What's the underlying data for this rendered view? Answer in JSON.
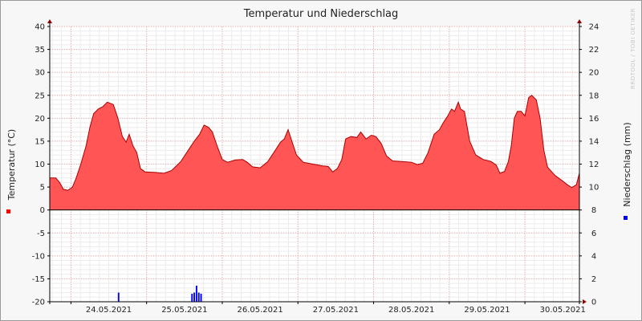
{
  "chart_data": {
    "type": "area",
    "title": "Temperatur und Niederschlag",
    "watermark": "RRDTOOL / TOBI OETIKER",
    "ylabel_left": "Temperatur (°C)",
    "ylabel_right": "Niederschlag (mm)",
    "ylim_left": [
      -20,
      40
    ],
    "ylim_right": [
      0,
      24
    ],
    "yticks_left": [
      40,
      35,
      30,
      25,
      20,
      15,
      10,
      5,
      0,
      -5,
      -10,
      -15,
      -20
    ],
    "yticks_right": [
      24,
      22,
      20,
      18,
      16,
      14,
      12,
      10,
      8,
      6,
      4,
      2,
      0
    ],
    "xlim_days": [
      -0.28,
      6.72
    ],
    "xtick_labels": [
      "24.05.2021",
      "25.05.2021",
      "26.05.2021",
      "27.05.2021",
      "28.05.2021",
      "29.05.2021",
      "30.05.2021"
    ],
    "grid": true,
    "legend_markers": [
      {
        "series": "Temperatur",
        "color": "#ff0000"
      },
      {
        "series": "Niederschlag",
        "color": "#0000ff"
      }
    ],
    "series": [
      {
        "name": "Temperatur",
        "unit": "°C",
        "color": "#ff5555",
        "line_color": "#aa0000",
        "points": [
          [
            -0.28,
            7
          ],
          [
            -0.2,
            7
          ],
          [
            -0.15,
            6
          ],
          [
            -0.1,
            4.5
          ],
          [
            -0.04,
            4.3
          ],
          [
            0.02,
            5
          ],
          [
            0.07,
            7
          ],
          [
            0.13,
            10
          ],
          [
            0.2,
            14
          ],
          [
            0.25,
            18
          ],
          [
            0.3,
            21
          ],
          [
            0.36,
            22
          ],
          [
            0.42,
            22.5
          ],
          [
            0.48,
            23.5
          ],
          [
            0.56,
            23
          ],
          [
            0.62,
            20
          ],
          [
            0.68,
            16
          ],
          [
            0.73,
            14.8
          ],
          [
            0.77,
            16.5
          ],
          [
            0.82,
            14
          ],
          [
            0.87,
            12.5
          ],
          [
            0.92,
            9
          ],
          [
            0.98,
            8.3
          ],
          [
            1.1,
            8.2
          ],
          [
            1.23,
            8
          ],
          [
            1.33,
            8.6
          ],
          [
            1.45,
            10.5
          ],
          [
            1.55,
            13
          ],
          [
            1.63,
            15
          ],
          [
            1.7,
            16.5
          ],
          [
            1.76,
            18.5
          ],
          [
            1.82,
            18
          ],
          [
            1.87,
            17
          ],
          [
            1.93,
            14
          ],
          [
            2.0,
            11
          ],
          [
            2.07,
            10.4
          ],
          [
            2.17,
            10.9
          ],
          [
            2.27,
            11
          ],
          [
            2.33,
            10.4
          ],
          [
            2.4,
            9.4
          ],
          [
            2.5,
            9.2
          ],
          [
            2.6,
            10.5
          ],
          [
            2.7,
            13
          ],
          [
            2.77,
            14.8
          ],
          [
            2.82,
            15.5
          ],
          [
            2.87,
            17.5
          ],
          [
            2.92,
            15
          ],
          [
            2.98,
            12
          ],
          [
            3.07,
            10.4
          ],
          [
            3.2,
            10
          ],
          [
            3.33,
            9.6
          ],
          [
            3.4,
            9.5
          ],
          [
            3.46,
            8.3
          ],
          [
            3.52,
            9
          ],
          [
            3.58,
            11
          ],
          [
            3.63,
            15.5
          ],
          [
            3.7,
            16
          ],
          [
            3.78,
            15.8
          ],
          [
            3.83,
            17
          ],
          [
            3.9,
            15.5
          ],
          [
            3.97,
            16.3
          ],
          [
            4.03,
            16
          ],
          [
            4.1,
            14.5
          ],
          [
            4.17,
            11.8
          ],
          [
            4.25,
            10.7
          ],
          [
            4.35,
            10.6
          ],
          [
            4.5,
            10.4
          ],
          [
            4.58,
            9.9
          ],
          [
            4.65,
            10.2
          ],
          [
            4.72,
            12.5
          ],
          [
            4.8,
            16.5
          ],
          [
            4.87,
            17.5
          ],
          [
            4.92,
            19
          ],
          [
            4.98,
            20.5
          ],
          [
            5.03,
            22
          ],
          [
            5.07,
            21.5
          ],
          [
            5.12,
            23.5
          ],
          [
            5.15,
            22
          ],
          [
            5.2,
            21.5
          ],
          [
            5.27,
            15
          ],
          [
            5.35,
            12
          ],
          [
            5.45,
            11
          ],
          [
            5.55,
            10.6
          ],
          [
            5.62,
            9.8
          ],
          [
            5.67,
            8
          ],
          [
            5.73,
            8.4
          ],
          [
            5.78,
            10.5
          ],
          [
            5.82,
            14
          ],
          [
            5.86,
            20
          ],
          [
            5.9,
            21.5
          ],
          [
            5.95,
            21.5
          ],
          [
            6.0,
            20.5
          ],
          [
            6.05,
            24.5
          ],
          [
            6.09,
            25
          ],
          [
            6.15,
            24
          ],
          [
            6.2,
            20
          ],
          [
            6.25,
            13
          ],
          [
            6.3,
            9.3
          ],
          [
            6.4,
            7.5
          ],
          [
            6.5,
            6.3
          ],
          [
            6.56,
            5.5
          ],
          [
            6.62,
            4.9
          ],
          [
            6.68,
            5.5
          ],
          [
            6.72,
            8
          ]
        ]
      },
      {
        "name": "Niederschlag",
        "unit": "mm",
        "color": "#0000ff",
        "bar_width_days": 0.02,
        "bars": [
          [
            0.63,
            0.8
          ],
          [
            1.6,
            0.7
          ],
          [
            1.63,
            0.8
          ],
          [
            1.66,
            1.4
          ],
          [
            1.69,
            0.8
          ],
          [
            1.72,
            0.7
          ]
        ]
      }
    ]
  }
}
